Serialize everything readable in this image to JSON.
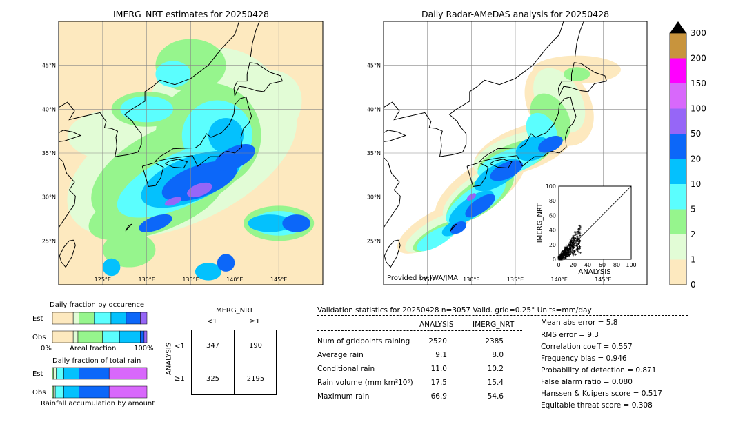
{
  "left_map": {
    "title": "IMERG_NRT estimates for 20250428",
    "lat_labels": [
      "45°N",
      "40°N",
      "35°N",
      "30°N",
      "25°N"
    ],
    "lon_labels": [
      "125°E",
      "130°E",
      "135°E",
      "140°E",
      "145°E"
    ]
  },
  "right_map": {
    "title": "Daily Radar-AMeDAS analysis for 20250428",
    "lat_labels": [
      "45°N",
      "40°N",
      "35°N",
      "30°N",
      "25°N"
    ],
    "lon_labels": [
      "125°E",
      "130°E",
      "135°E",
      "140°E",
      "145°E"
    ],
    "credit": "Provided by JWA/JMA"
  },
  "colorbar": {
    "labels": [
      "0",
      "1",
      "2",
      "5",
      "10",
      "20",
      "50",
      "100",
      "150",
      "200",
      "300"
    ],
    "colors": [
      "#fde9bf",
      "#e2fcd6",
      "#96f58d",
      "#5bfefe",
      "#04c1fd",
      "#0c67f9",
      "#9666f7",
      "#d868fb",
      "#ff00ff",
      "#c8943d"
    ]
  },
  "scatter": {
    "xlabel": "ANALYSIS",
    "ylabel": "IMERG_NRT",
    "ticks": [
      "0",
      "20",
      "40",
      "60",
      "80",
      "100"
    ]
  },
  "occurrence": {
    "title": "Daily fraction by occurence",
    "row_labels": [
      "Est",
      "Obs"
    ],
    "axis_left": "0%",
    "axis_mid": "Areal fraction",
    "axis_right": "100%"
  },
  "total_rain": {
    "title": "Daily fraction of total rain",
    "row_labels": [
      "Est",
      "Obs"
    ],
    "caption": "Rainfall accumulation by amount"
  },
  "contingency": {
    "title": "IMERG_NRT",
    "col_labels": [
      "<1",
      "≥1"
    ],
    "row_axis": "ANALYSIS",
    "row_labels": [
      "<1",
      "≥1"
    ],
    "cells": [
      [
        "347",
        "190"
      ],
      [
        "325",
        "2195"
      ]
    ]
  },
  "stats": {
    "header": "Validation statistics for 20250428  n=3057 Valid. grid=0.25° Units=mm/day",
    "col_analysis": "ANALYSIS",
    "col_imerg": "IMERG_NRT",
    "rows": [
      {
        "label": "Num of gridpoints raining",
        "analysis": "2520",
        "imerg": "2385"
      },
      {
        "label": "Average rain",
        "analysis": "9.1",
        "imerg": "8.0"
      },
      {
        "label": "Conditional rain",
        "analysis": "11.0",
        "imerg": "10.2"
      },
      {
        "label": "Rain volume (mm km²10⁶)",
        "analysis": "17.5",
        "imerg": "15.4"
      },
      {
        "label": "Maximum rain",
        "analysis": "66.9",
        "imerg": "54.6"
      }
    ],
    "scores": [
      "Mean abs error =    5.8",
      "RMS error =    9.3",
      "Correlation coeff =  0.557",
      "Frequency bias =  0.946",
      "Probability of detection =  0.871",
      "False alarm ratio =  0.080",
      "Hanssen & Kuipers score =  0.517",
      "Equitable threat score =  0.308"
    ]
  },
  "chart_data": [
    {
      "type": "heatmap",
      "title": "IMERG_NRT estimates for 20250428",
      "x_ticks": [
        "125°E",
        "130°E",
        "135°E",
        "140°E",
        "145°E"
      ],
      "y_ticks": [
        "45°N",
        "40°N",
        "35°N",
        "30°N",
        "25°N"
      ],
      "xlim": [
        120,
        150
      ],
      "ylim": [
        20,
        50
      ]
    },
    {
      "type": "heatmap",
      "title": "Daily Radar-AMeDAS analysis for 20250428",
      "x_ticks": [
        "125°E",
        "130°E",
        "135°E",
        "140°E",
        "145°E"
      ],
      "y_ticks": [
        "45°N",
        "40°N",
        "35°N",
        "30°N",
        "25°N"
      ],
      "xlim": [
        120,
        150
      ],
      "ylim": [
        20,
        50
      ]
    },
    {
      "type": "scatter",
      "xlabel": "ANALYSIS",
      "ylabel": "IMERG_NRT",
      "xlim": [
        0,
        100
      ],
      "ylim": [
        0,
        100
      ]
    },
    {
      "type": "bar",
      "title": "Daily fraction by occurence",
      "categories": [
        "Est",
        "Obs"
      ],
      "series": [
        {
          "values": [
            0.22,
            0.22
          ]
        },
        {
          "values": [
            0.06,
            0.05
          ]
        },
        {
          "values": [
            0.16,
            0.26
          ]
        },
        {
          "values": [
            0.18,
            0.18
          ]
        },
        {
          "values": [
            0.16,
            0.22
          ]
        },
        {
          "values": [
            0.15,
            0.04
          ]
        },
        {
          "values": [
            0.07,
            0.03
          ]
        }
      ]
    },
    {
      "type": "bar",
      "title": "Daily fraction of total rain",
      "categories": [
        "Est",
        "Obs"
      ],
      "series": [
        {
          "values": [
            0.01,
            0.01
          ]
        },
        {
          "values": [
            0.03,
            0.02
          ]
        },
        {
          "values": [
            0.08,
            0.09
          ]
        },
        {
          "values": [
            0.16,
            0.16
          ]
        },
        {
          "values": [
            0.32,
            0.32
          ]
        },
        {
          "values": [
            0.4,
            0.4
          ]
        }
      ]
    },
    {
      "type": "table",
      "title": "IMERG_NRT",
      "col_labels": [
        "<1",
        "≥1"
      ],
      "row_labels": [
        "<1",
        "≥1"
      ],
      "cells": [
        [
          347,
          190
        ],
        [
          325,
          2195
        ]
      ]
    }
  ]
}
